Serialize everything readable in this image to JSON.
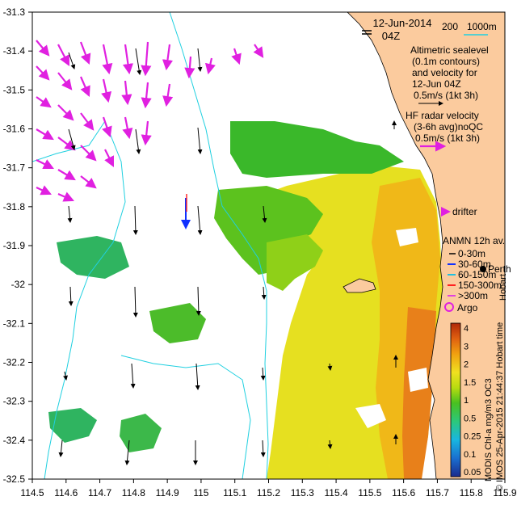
{
  "map": {
    "date_label": "12-Jun-2014",
    "time_label": "04Z",
    "bathy_label_200": "200",
    "bathy_label_1000": "1000m",
    "altimetry_legend": [
      "Altimetric sealevel",
      "(0.1m contours)",
      "and velocity for",
      "12-Jun 04Z",
      "0.5m/s (1kt 3h)"
    ],
    "hf_radar_legend": [
      "HF radar velocity",
      "(3-6h avg)noQC",
      "0.5m/s (1kt 3h)"
    ],
    "drifter_label": "drifter",
    "anmn_title": "ANMN 12h av.",
    "anmn_depths": [
      "0-30m",
      "30-60m",
      "60-150m",
      "150-300m",
      ">300m"
    ],
    "anmn_colors": [
      "#000000",
      "#1030ff",
      "#20c0e0",
      "#ff2020",
      "#e040e0"
    ],
    "argo_label": "Argo",
    "city_labels": [
      "Perth",
      "Hobart"
    ],
    "colorbar_title": "MODIS Chl-a mg/m3 OC3",
    "colorbar_ticks": [
      "4",
      "3",
      "2",
      "1.5",
      "1",
      "0.5",
      "0.25",
      "0.1",
      "0.05"
    ],
    "credit": "© IMOS 25-Apr-2015 21:44:37 Hobart time",
    "x_ticks": [
      "114.5",
      "114.6",
      "114.7",
      "114.8",
      "114.9",
      "115",
      "115.1",
      "115.2",
      "115.3",
      "115.4",
      "115.5",
      "115.6",
      "115.7",
      "115.8",
      "115.9"
    ],
    "y_ticks": [
      "-31.3",
      "-31.4",
      "-31.5",
      "-31.6",
      "-31.7",
      "-31.8",
      "-31.9",
      "-32",
      "-32.1",
      "-32.2",
      "-32.3",
      "-32.4",
      "-32.5"
    ],
    "colors": {
      "land": "#fbcb9e",
      "hf_arrow": "#e020e0",
      "altimetry_arrow": "#000000",
      "bathymetry": "#20d0e0",
      "axis": "#000000"
    }
  }
}
